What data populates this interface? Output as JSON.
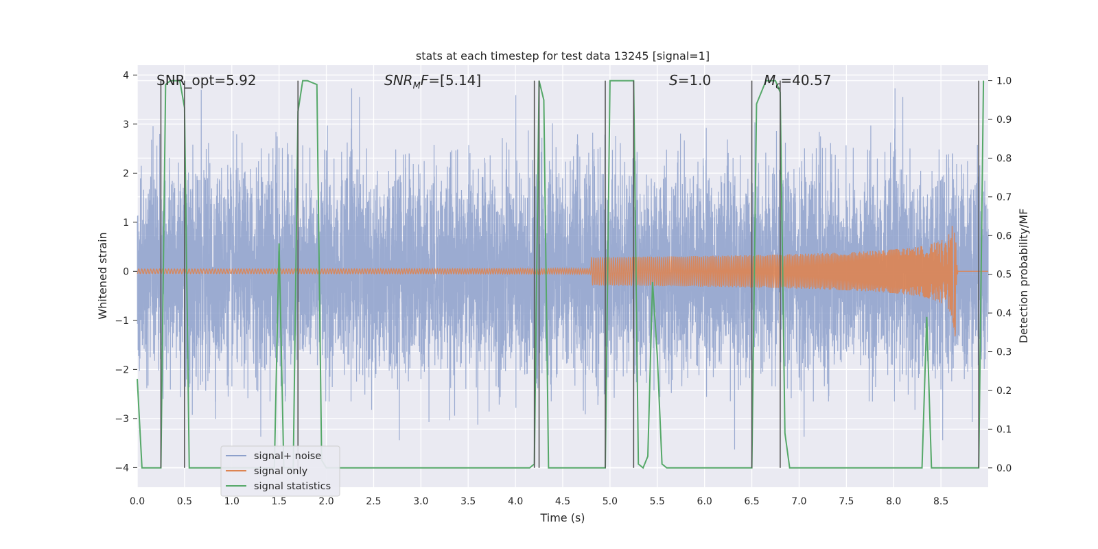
{
  "chart_data": {
    "type": "line",
    "title": "stats at each timestep for test data 13245 [signal=1]",
    "xlabel": "Time (s)",
    "ylabel_left": "Whitened strain",
    "ylabel_right": "Detection probability/MF",
    "xlim": [
      0,
      9.0
    ],
    "ylim_left": [
      -4.4,
      4.2
    ],
    "ylim_right": [
      -0.05,
      1.04
    ],
    "x_ticks": [
      0.0,
      0.5,
      1.0,
      1.5,
      2.0,
      2.5,
      3.0,
      3.5,
      4.0,
      4.5,
      5.0,
      5.5,
      6.0,
      6.5,
      7.0,
      7.5,
      8.0,
      8.5
    ],
    "x_tick_labels": [
      "0.0",
      "0.5",
      "1.0",
      "1.5",
      "2.0",
      "2.5",
      "3.0",
      "3.5",
      "4.0",
      "4.5",
      "5.0",
      "5.5",
      "6.0",
      "6.5",
      "7.0",
      "7.5",
      "8.0",
      "8.5"
    ],
    "y_left_ticks": [
      -4,
      -3,
      -2,
      -1,
      0,
      1,
      2,
      3,
      4
    ],
    "y_left_tick_labels": [
      "−4",
      "−3",
      "−2",
      "−1",
      "0",
      "1",
      "2",
      "3",
      "4"
    ],
    "y_right_ticks": [
      0.0,
      0.1,
      0.2,
      0.3,
      0.4,
      0.5,
      0.6,
      0.7,
      0.8,
      0.9,
      1.0
    ],
    "y_right_tick_labels": [
      "0.0",
      "0.1",
      "0.2",
      "0.3",
      "0.4",
      "0.5",
      "0.6",
      "0.7",
      "0.8",
      "0.9",
      "1.0"
    ],
    "annotations": [
      {
        "text": "SNR_opt=5.92",
        "x": 0.2
      },
      {
        "text": "SNR_MF=[5.14]",
        "x": 2.6
      },
      {
        "text": "S=1.0",
        "x": 5.6
      },
      {
        "text": "M_c=40.57",
        "x": 6.6
      }
    ],
    "legend": {
      "position": "lower-left",
      "entries": [
        {
          "label": "signal+ noise",
          "color": "#8da0cb"
        },
        {
          "label": "signal only",
          "color": "#dd8452"
        },
        {
          "label": "signal statistics",
          "color": "#55a868"
        }
      ]
    },
    "series": [
      {
        "name": "signal+ noise",
        "axis": "left",
        "color": "#8da0cb",
        "generated": "gaussian whitened noise, 8192 samples over 0-9 s, std approx 1.0, peaks near +/-3.3",
        "seed": 13245
      },
      {
        "name": "signal only",
        "axis": "left",
        "color": "#dd8452",
        "generated": "chirp, amplitude grows from ~0 near 5 s to ~1.6 at merger 8.65 s",
        "merger_time": 8.65,
        "peak_amplitude": 1.6
      },
      {
        "name": "signal statistics",
        "axis": "right",
        "color": "#55a868",
        "x": [
          0.0,
          0.05,
          0.25,
          0.3,
          0.35,
          0.45,
          0.5,
          0.55,
          1.45,
          1.5,
          1.55,
          1.65,
          1.7,
          1.75,
          1.8,
          1.9,
          1.95,
          2.0,
          4.15,
          4.2,
          4.25,
          4.3,
          4.35,
          4.4,
          4.45,
          4.95,
          5.0,
          5.05,
          5.25,
          5.3,
          5.35,
          5.4,
          5.45,
          5.5,
          5.55,
          5.6,
          5.65,
          6.5,
          6.55,
          6.65,
          6.75,
          6.8,
          6.85,
          6.9,
          6.95,
          7.8,
          7.85,
          7.95,
          8.3,
          8.35,
          8.4,
          8.45,
          8.9,
          8.95
        ],
        "y": [
          0.23,
          0.0,
          0.0,
          0.99,
          1.0,
          1.0,
          0.93,
          0.0,
          0.0,
          0.58,
          0.0,
          0.0,
          0.92,
          1.0,
          1.0,
          0.99,
          0.02,
          0.0,
          0.0,
          0.01,
          1.0,
          0.95,
          0.0,
          0.0,
          0.0,
          0.0,
          1.0,
          1.0,
          1.0,
          0.01,
          0.0,
          0.03,
          0.48,
          0.29,
          0.01,
          0.0,
          0.0,
          0.0,
          0.94,
          1.0,
          1.0,
          0.97,
          0.09,
          0.0,
          0.0,
          0.0,
          0.0,
          0.0,
          0.0,
          0.39,
          0.0,
          0.0,
          0.0,
          1.0
        ]
      }
    ],
    "vertical_lines": [
      0.25,
      0.5,
      1.7,
      4.2,
      4.25,
      4.95,
      5.25,
      6.5,
      6.8,
      8.9
    ]
  }
}
